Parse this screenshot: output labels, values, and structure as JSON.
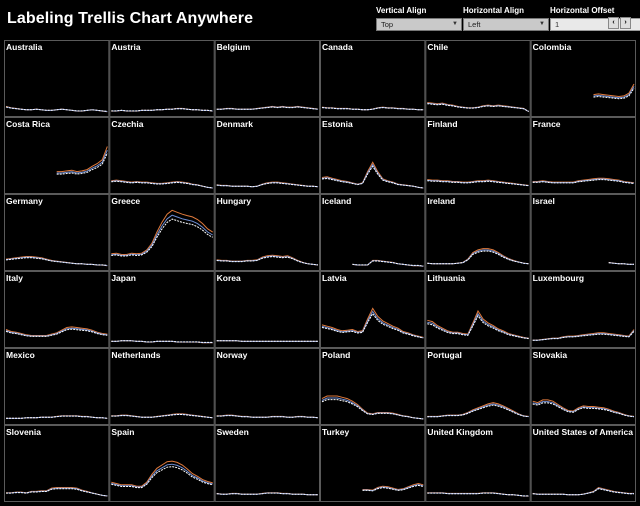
{
  "title": "Labeling Trellis Chart Anywhere",
  "controls": {
    "vertical_align": {
      "label": "Vertical Align",
      "value": "Top"
    },
    "horizontal_align": {
      "label": "Horizontal Align",
      "value": "Left"
    },
    "horizontal_offset": {
      "label": "Horizontal Offset",
      "value": "1"
    }
  },
  "colors": {
    "background": "#000000",
    "series": [
      "#ffffff",
      "#6f8fd6",
      "#e07a3c"
    ],
    "grid": "#5a5a5a"
  },
  "chart_data": {
    "type": "line",
    "layout": "trellis",
    "columns": 6,
    "ylim": [
      0,
      100
    ],
    "series_count": 3,
    "panels": [
      {
        "name": "Australia",
        "values": [
          12,
          10,
          9,
          8,
          7,
          7,
          8,
          7,
          6,
          6,
          7,
          8,
          7,
          6,
          5,
          5,
          6,
          7,
          6,
          5,
          4
        ]
      },
      {
        "name": "Austria",
        "values": [
          5,
          5,
          6,
          5,
          5,
          5,
          6,
          6,
          6,
          7,
          7,
          8,
          8,
          9,
          9,
          8,
          7,
          7,
          6,
          6,
          5
        ]
      },
      {
        "name": "Belgium",
        "values": [
          8,
          8,
          9,
          9,
          8,
          8,
          8,
          8,
          9,
          10,
          11,
          12,
          11,
          12,
          11,
          11,
          12,
          11,
          10,
          9,
          8
        ]
      },
      {
        "name": "Canada",
        "values": [
          11,
          10,
          10,
          9,
          9,
          9,
          8,
          8,
          7,
          7,
          8,
          10,
          11,
          10,
          10,
          9,
          9,
          8,
          8,
          7,
          7
        ]
      },
      {
        "name": "Chile",
        "values": [
          18,
          17,
          16,
          17,
          15,
          14,
          12,
          11,
          10,
          10,
          11,
          13,
          14,
          13,
          14,
          13,
          12,
          11,
          10,
          9,
          4
        ]
      },
      {
        "name": "Colombia",
        "values": [
          null,
          null,
          null,
          null,
          null,
          null,
          null,
          null,
          null,
          null,
          null,
          null,
          30,
          31,
          30,
          29,
          28,
          27,
          28,
          32,
          46
        ]
      },
      {
        "name": "Costa Rica",
        "values": [
          null,
          null,
          null,
          null,
          null,
          null,
          null,
          null,
          null,
          null,
          30,
          30,
          31,
          32,
          30,
          31,
          33,
          38,
          42,
          48,
          68
        ]
      },
      {
        "name": "Czechia",
        "values": [
          16,
          17,
          16,
          15,
          14,
          15,
          14,
          14,
          13,
          12,
          12,
          13,
          14,
          15,
          14,
          13,
          11,
          10,
          8,
          6,
          5
        ]
      },
      {
        "name": "Denmark",
        "values": [
          10,
          9,
          9,
          8,
          8,
          8,
          8,
          7,
          8,
          11,
          13,
          14,
          14,
          13,
          12,
          11,
          10,
          9,
          8,
          8,
          7
        ]
      },
      {
        "name": "Estonia",
        "values": [
          21,
          22,
          20,
          18,
          16,
          15,
          13,
          11,
          13,
          30,
          44,
          30,
          19,
          16,
          14,
          11,
          10,
          9,
          8,
          6,
          5
        ]
      },
      {
        "name": "Finland",
        "values": [
          18,
          17,
          17,
          16,
          16,
          15,
          15,
          14,
          14,
          15,
          16,
          16,
          17,
          16,
          15,
          14,
          13,
          12,
          11,
          10,
          9
        ]
      },
      {
        "name": "France",
        "values": [
          15,
          15,
          16,
          15,
          14,
          14,
          14,
          14,
          14,
          16,
          17,
          18,
          19,
          20,
          20,
          19,
          18,
          17,
          15,
          14,
          13
        ]
      },
      {
        "name": "Germany",
        "values": [
          14,
          15,
          16,
          17,
          18,
          18,
          17,
          16,
          14,
          12,
          11,
          10,
          9,
          8,
          7,
          7,
          6,
          6,
          5,
          5,
          4
        ]
      },
      {
        "name": "Greece",
        "values": [
          22,
          23,
          21,
          21,
          23,
          22,
          23,
          28,
          38,
          55,
          70,
          82,
          88,
          85,
          82,
          80,
          78,
          74,
          68,
          60,
          55
        ]
      },
      {
        "name": "Hungary",
        "values": [
          13,
          12,
          12,
          11,
          11,
          11,
          12,
          12,
          13,
          17,
          19,
          20,
          19,
          18,
          19,
          16,
          12,
          9,
          7,
          6,
          5
        ]
      },
      {
        "name": "Iceland",
        "values": [
          null,
          null,
          null,
          null,
          null,
          null,
          6,
          5,
          5,
          5,
          12,
          12,
          11,
          10,
          9,
          7,
          6,
          5,
          4,
          4,
          3
        ]
      },
      {
        "name": "Ireland",
        "values": [
          8,
          7,
          7,
          7,
          7,
          7,
          8,
          9,
          14,
          24,
          28,
          30,
          30,
          28,
          24,
          19,
          15,
          12,
          10,
          8,
          7
        ]
      },
      {
        "name": "Israel",
        "values": [
          null,
          null,
          null,
          null,
          null,
          null,
          null,
          null,
          null,
          null,
          null,
          null,
          null,
          null,
          null,
          9,
          8,
          7,
          7,
          6,
          6
        ]
      },
      {
        "name": "Italy",
        "values": [
          24,
          21,
          20,
          18,
          16,
          15,
          15,
          15,
          15,
          17,
          19,
          23,
          27,
          28,
          27,
          26,
          25,
          23,
          20,
          18,
          17
        ]
      },
      {
        "name": "Japan",
        "values": [
          6,
          6,
          7,
          7,
          7,
          6,
          6,
          5,
          5,
          6,
          6,
          6,
          6,
          5,
          5,
          5,
          5,
          5,
          4,
          4,
          4
        ]
      },
      {
        "name": "Korea",
        "values": [
          7,
          7,
          7,
          7,
          7,
          6,
          6,
          6,
          6,
          6,
          6,
          6,
          6,
          6,
          6,
          6,
          6,
          6,
          6,
          6,
          6
        ]
      },
      {
        "name": "Latvia",
        "values": [
          31,
          29,
          27,
          24,
          22,
          23,
          24,
          21,
          22,
          40,
          56,
          44,
          37,
          33,
          29,
          26,
          21,
          19,
          16,
          14,
          12
        ]
      },
      {
        "name": "Lithuania",
        "values": [
          38,
          36,
          30,
          26,
          22,
          20,
          20,
          18,
          17,
          34,
          52,
          40,
          34,
          30,
          25,
          22,
          18,
          16,
          14,
          12,
          11
        ]
      },
      {
        "name": "Luxembourg",
        "values": [
          8,
          8,
          9,
          10,
          11,
          11,
          13,
          14,
          14,
          15,
          16,
          17,
          18,
          19,
          19,
          18,
          17,
          16,
          15,
          14,
          24
        ]
      },
      {
        "name": "Mexico",
        "values": [
          6,
          6,
          6,
          6,
          7,
          7,
          7,
          8,
          8,
          8,
          9,
          10,
          10,
          10,
          10,
          9,
          9,
          8,
          7,
          7,
          6
        ]
      },
      {
        "name": "Netherlands",
        "values": [
          10,
          10,
          11,
          11,
          10,
          9,
          8,
          8,
          8,
          9,
          10,
          11,
          12,
          13,
          13,
          12,
          11,
          10,
          9,
          8,
          7
        ]
      },
      {
        "name": "Norway",
        "values": [
          10,
          10,
          11,
          11,
          10,
          9,
          9,
          8,
          8,
          8,
          8,
          9,
          9,
          9,
          8,
          8,
          9,
          9,
          8,
          8,
          7
        ]
      },
      {
        "name": "Poland",
        "values": [
          36,
          40,
          40,
          40,
          38,
          36,
          32,
          27,
          20,
          14,
          13,
          15,
          15,
          15,
          14,
          12,
          10,
          9,
          7,
          6,
          5
        ]
      },
      {
        "name": "Portugal",
        "values": [
          9,
          9,
          9,
          10,
          11,
          11,
          11,
          12,
          15,
          19,
          22,
          25,
          28,
          30,
          28,
          25,
          21,
          17,
          13,
          10,
          9
        ]
      },
      {
        "name": "Slovakia",
        "values": [
          32,
          30,
          34,
          34,
          32,
          27,
          22,
          18,
          17,
          22,
          25,
          24,
          24,
          23,
          22,
          20,
          17,
          15,
          12,
          10,
          9
        ]
      },
      {
        "name": "Slovenia",
        "values": [
          10,
          10,
          11,
          11,
          10,
          12,
          12,
          13,
          13,
          17,
          18,
          18,
          18,
          18,
          17,
          14,
          12,
          10,
          8,
          6,
          5
        ]
      },
      {
        "name": "Spain",
        "values": [
          26,
          24,
          22,
          22,
          22,
          20,
          20,
          26,
          38,
          47,
          52,
          57,
          58,
          56,
          52,
          46,
          39,
          35,
          30,
          27,
          25
        ]
      },
      {
        "name": "Sweden",
        "values": [
          9,
          8,
          8,
          9,
          9,
          8,
          8,
          8,
          8,
          9,
          10,
          10,
          10,
          9,
          9,
          8,
          8,
          8,
          7,
          7,
          7
        ]
      },
      {
        "name": "Turkey",
        "values": [
          null,
          null,
          null,
          null,
          null,
          null,
          null,
          null,
          15,
          15,
          14,
          18,
          20,
          19,
          17,
          15,
          16,
          19,
          22,
          24,
          22
        ]
      },
      {
        "name": "United Kingdom",
        "values": [
          10,
          10,
          10,
          10,
          9,
          9,
          9,
          9,
          9,
          9,
          9,
          10,
          10,
          10,
          9,
          8,
          7,
          7,
          6,
          5,
          5
        ]
      },
      {
        "name": "United States of America",
        "values": [
          9,
          8,
          8,
          8,
          8,
          8,
          8,
          7,
          7,
          7,
          8,
          10,
          12,
          18,
          16,
          14,
          12,
          11,
          10,
          9,
          9
        ]
      }
    ]
  }
}
